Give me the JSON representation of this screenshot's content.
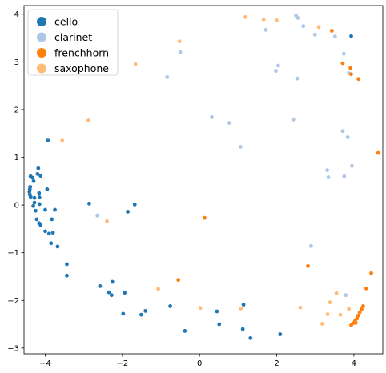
{
  "chart_data": {
    "type": "scatter",
    "title": "",
    "xlabel": "",
    "ylabel": "",
    "xlim": [
      -4.55,
      4.75
    ],
    "ylim": [
      -3.12,
      4.18
    ],
    "xticks": [
      -4,
      -2,
      0,
      2,
      4
    ],
    "yticks": [
      -3,
      -2,
      -1,
      0,
      1,
      2,
      3,
      4
    ],
    "grid": false,
    "legend_position": "top-left",
    "series": [
      {
        "name": "cello",
        "color": "#1f77b4",
        "points": [
          [
            -3.93,
            1.35
          ],
          [
            -4.18,
            0.77
          ],
          [
            -4.2,
            0.65
          ],
          [
            -4.12,
            0.61
          ],
          [
            -3.95,
            0.33
          ],
          [
            -4.38,
            0.6
          ],
          [
            -4.33,
            0.57
          ],
          [
            -4.3,
            0.5
          ],
          [
            -4.39,
            0.38
          ],
          [
            -4.4,
            0.33
          ],
          [
            -4.41,
            0.28
          ],
          [
            -4.4,
            0.22
          ],
          [
            -4.38,
            0.17
          ],
          [
            -4.28,
            0.15
          ],
          [
            -4.16,
            0.25
          ],
          [
            -4.15,
            0.16
          ],
          [
            -4.28,
            0.05
          ],
          [
            -4.31,
            -0.02
          ],
          [
            -4.15,
            0.02
          ],
          [
            -4.25,
            -0.12
          ],
          [
            -4.0,
            -0.1
          ],
          [
            -3.75,
            -0.1
          ],
          [
            -3.83,
            -0.3
          ],
          [
            -4.22,
            -0.3
          ],
          [
            -4.16,
            -0.38
          ],
          [
            -4.12,
            -0.42
          ],
          [
            -4.0,
            -0.55
          ],
          [
            -3.9,
            -0.6
          ],
          [
            -3.8,
            -0.58
          ],
          [
            -3.85,
            -0.8
          ],
          [
            -3.68,
            -0.87
          ],
          [
            -3.44,
            -1.24
          ],
          [
            -3.44,
            -1.48
          ],
          [
            -2.86,
            0.03
          ],
          [
            -1.86,
            -0.14
          ],
          [
            -1.68,
            0.01
          ],
          [
            -2.58,
            -1.7
          ],
          [
            -2.35,
            -1.83
          ],
          [
            -2.26,
            -1.61
          ],
          [
            -2.28,
            -1.89
          ],
          [
            -1.94,
            -1.84
          ],
          [
            -1.98,
            -2.28
          ],
          [
            -1.4,
            -2.22
          ],
          [
            -1.51,
            -2.3
          ],
          [
            -0.76,
            -2.12
          ],
          [
            -0.38,
            -2.64
          ],
          [
            0.45,
            -2.23
          ],
          [
            0.51,
            -2.5
          ],
          [
            1.14,
            -2.09
          ],
          [
            1.12,
            -2.6
          ],
          [
            1.32,
            -2.79
          ],
          [
            2.09,
            -2.71
          ],
          [
            3.93,
            3.54
          ]
        ]
      },
      {
        "name": "clarinet",
        "color": "#aec7e8",
        "points": [
          [
            2.5,
            3.97
          ],
          [
            2.55,
            3.92
          ],
          [
            2.69,
            3.75
          ],
          [
            2.99,
            3.57
          ],
          [
            1.72,
            3.67
          ],
          [
            2.04,
            2.92
          ],
          [
            1.98,
            2.81
          ],
          [
            2.53,
            2.65
          ],
          [
            3.51,
            3.53
          ],
          [
            3.74,
            3.17
          ],
          [
            3.87,
            2.76
          ],
          [
            -0.5,
            3.2
          ],
          [
            -0.84,
            2.68
          ],
          [
            0.32,
            1.84
          ],
          [
            0.77,
            1.72
          ],
          [
            1.06,
            1.22
          ],
          [
            2.43,
            1.79
          ],
          [
            3.71,
            1.55
          ],
          [
            3.84,
            1.42
          ],
          [
            3.31,
            0.73
          ],
          [
            3.34,
            0.58
          ],
          [
            3.75,
            0.6
          ],
          [
            3.95,
            0.82
          ],
          [
            -2.65,
            -0.22
          ],
          [
            2.89,
            -0.86
          ],
          [
            3.79,
            -1.89
          ]
        ]
      },
      {
        "name": "frenchhorn",
        "color": "#ff7f0e",
        "points": [
          [
            3.43,
            3.65
          ],
          [
            3.71,
            2.97
          ],
          [
            3.91,
            2.87
          ],
          [
            3.93,
            2.74
          ],
          [
            4.12,
            2.64
          ],
          [
            4.63,
            1.09
          ],
          [
            0.13,
            -0.27
          ],
          [
            -0.55,
            -1.57
          ],
          [
            2.81,
            -1.28
          ],
          [
            4.32,
            -1.75
          ],
          [
            4.45,
            -1.43
          ],
          [
            4.24,
            -2.12
          ],
          [
            4.2,
            -2.18
          ],
          [
            4.15,
            -2.25
          ],
          [
            4.11,
            -2.32
          ],
          [
            4.08,
            -2.38
          ],
          [
            4.03,
            -2.43
          ],
          [
            3.98,
            -2.48
          ],
          [
            3.93,
            -2.52
          ],
          [
            4.05,
            -2.47
          ]
        ]
      },
      {
        "name": "saxophone",
        "color": "#ffbb78",
        "points": [
          [
            1.19,
            3.94
          ],
          [
            1.66,
            3.89
          ],
          [
            2.0,
            3.87
          ],
          [
            3.09,
            3.73
          ],
          [
            -0.52,
            3.43
          ],
          [
            -1.66,
            2.95
          ],
          [
            -2.88,
            1.77
          ],
          [
            -3.56,
            1.35
          ],
          [
            -2.4,
            -0.34
          ],
          [
            -1.07,
            -1.76
          ],
          [
            0.02,
            -2.16
          ],
          [
            1.07,
            -2.17
          ],
          [
            2.61,
            -2.15
          ],
          [
            3.18,
            -2.49
          ],
          [
            3.32,
            -2.29
          ],
          [
            3.38,
            -2.04
          ],
          [
            3.55,
            -1.85
          ],
          [
            3.65,
            -2.3
          ],
          [
            3.87,
            -2.18
          ]
        ]
      }
    ]
  }
}
